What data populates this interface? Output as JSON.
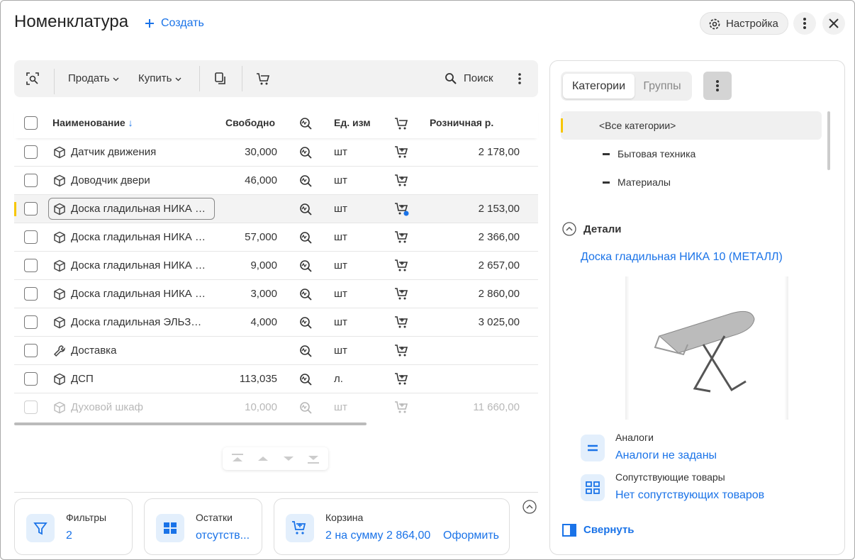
{
  "header": {
    "title": "Номенклатура",
    "create": "Создать",
    "settings": "Настройка"
  },
  "toolbar": {
    "sell": "Продать",
    "buy": "Купить",
    "search": "Поиск"
  },
  "table": {
    "columns": [
      "Наименование",
      "Свободно",
      "Ед. изм",
      "Розничная р."
    ],
    "rows": [
      [
        "Датчик движения",
        "30,000",
        "шт",
        "2 178,00"
      ],
      [
        "Доводчик двери",
        "46,000",
        "шт",
        null
      ],
      [
        "Доска гладильная  НИКА …",
        null,
        "шт",
        "2 153,00"
      ],
      [
        "Доска гладильная  НИКА …",
        "57,000",
        "шт",
        "2 366,00"
      ],
      [
        "Доска гладильная  НИКА …",
        "9,000",
        "шт",
        "2 657,00"
      ],
      [
        "Доска гладильная  НИКА …",
        "3,000",
        "шт",
        "2 860,00"
      ],
      [
        "Доска гладильная  ЭЛЬЗ…",
        "4,000",
        "шт",
        "3 025,00"
      ],
      [
        "Доставка",
        null,
        "шт",
        null
      ],
      [
        "ДСП",
        "113,035",
        "л.",
        null
      ],
      [
        "Духовой шкаф",
        "10,000",
        "шт",
        "11 660,00"
      ]
    ]
  },
  "footer": {
    "filters": {
      "label": "Фильтры",
      "value": "2"
    },
    "stock": {
      "label": "Остатки",
      "value": "отсутств..."
    },
    "cart": {
      "label": "Корзина",
      "value": "2 на сумму 2 864,00",
      "action": "Оформить"
    }
  },
  "side": {
    "tabs": [
      "Категории",
      "Группы"
    ],
    "categories": [
      "<Все категории>",
      "Бытовая техника",
      "Материалы"
    ],
    "details": {
      "title": "Детали",
      "item": "Доска гладильная  НИКА 10 (МЕТАЛЛ)",
      "analogs_label": "Аналоги",
      "analogs_value": "Аналоги не заданы",
      "related_label": "Сопутствующие товары",
      "related_value": "Нет сопутствующих товаров"
    },
    "collapse": "Свернуть"
  }
}
